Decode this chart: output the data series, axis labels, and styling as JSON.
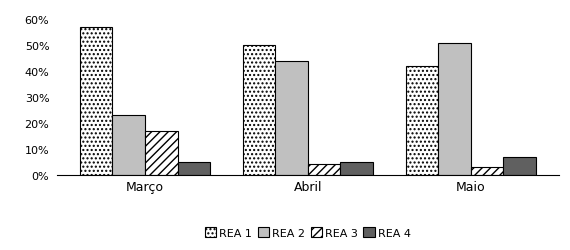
{
  "categories": [
    "Março",
    "Abril",
    "Maio"
  ],
  "series": {
    "REA 1": [
      0.57,
      0.5,
      0.42
    ],
    "REA 2": [
      0.23,
      0.44,
      0.51
    ],
    "REA 3": [
      0.17,
      0.04,
      0.03
    ],
    "REA 4": [
      0.05,
      0.05,
      0.07
    ]
  },
  "ylim": [
    0,
    0.65
  ],
  "yticks": [
    0.0,
    0.1,
    0.2,
    0.3,
    0.4,
    0.5,
    0.6
  ],
  "bar_width": 0.2,
  "colors": [
    "white",
    "#c0c0c0",
    "white",
    "#606060"
  ],
  "legend_labels": [
    "REA 1",
    "REA 2",
    "REA 3",
    "REA 4"
  ],
  "edge_color": "black",
  "tick_fontsize": 8,
  "label_fontsize": 9
}
